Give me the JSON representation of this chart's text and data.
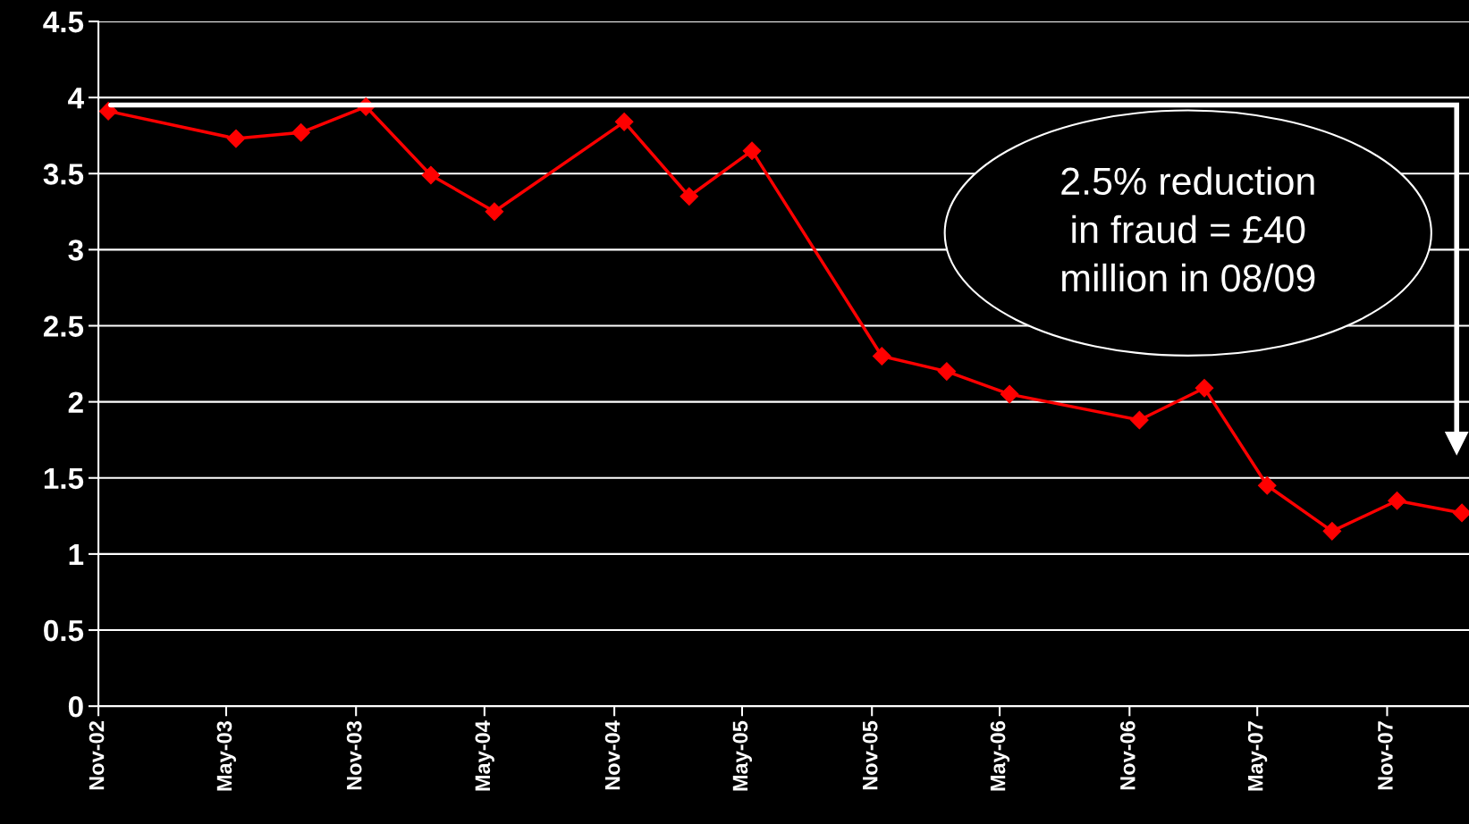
{
  "chart_data": {
    "type": "line",
    "x": [
      "2002-11-15",
      "2003-05-15",
      "2003-08-15",
      "2003-11-15",
      "2004-02-15",
      "2004-05-15",
      "2004-11-15",
      "2005-02-15",
      "2005-05-15",
      "2005-11-15",
      "2006-02-15",
      "2006-05-15",
      "2006-11-15",
      "2007-02-15",
      "2007-05-15",
      "2007-08-15",
      "2007-11-15",
      "2008-02-15"
    ],
    "series": [
      {
        "color": "#ff0000",
        "values": [
          3.91,
          3.73,
          3.77,
          3.94,
          3.49,
          3.25,
          3.84,
          3.35,
          3.65,
          2.3,
          2.2,
          2.05,
          1.88,
          2.09,
          1.45,
          1.15,
          1.35,
          1.27
        ]
      }
    ],
    "xlim": [
      "2002-11-01",
      "2008-02-25"
    ],
    "xticks": [
      {
        "value": "2002-11-01",
        "label": "Nov-02"
      },
      {
        "value": "2003-05-01",
        "label": "May-03"
      },
      {
        "value": "2003-11-01",
        "label": "Nov-03"
      },
      {
        "value": "2004-05-01",
        "label": "May-04"
      },
      {
        "value": "2004-11-01",
        "label": "Nov-04"
      },
      {
        "value": "2005-05-01",
        "label": "May-05"
      },
      {
        "value": "2005-11-01",
        "label": "Nov-05"
      },
      {
        "value": "2006-05-01",
        "label": "May-06"
      },
      {
        "value": "2006-11-01",
        "label": "Nov-06"
      },
      {
        "value": "2007-05-01",
        "label": "May-07"
      },
      {
        "value": "2007-11-01",
        "label": "Nov-07"
      }
    ],
    "ylim": [
      0,
      4.5
    ],
    "yticks": [
      0,
      0.5,
      1,
      1.5,
      2,
      2.5,
      3,
      3.5,
      4,
      4.5
    ],
    "grid": "y",
    "marker": "diamond",
    "line_style": "solid",
    "annotations": [
      "2.5% reduction\nin fraud = £40\nmillion in 08/09"
    ]
  }
}
